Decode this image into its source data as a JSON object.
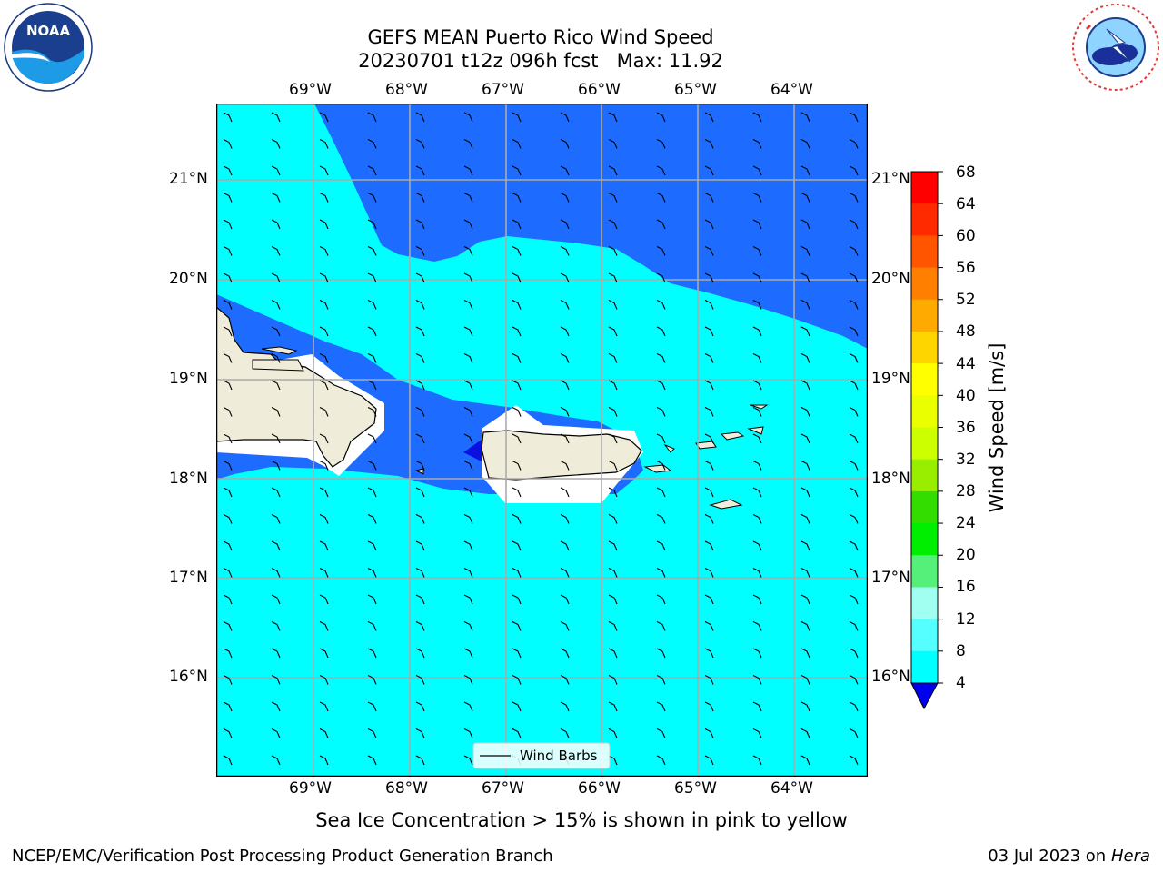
{
  "header": {
    "title_line1": "GEFS MEAN Puerto Rico Wind Speed",
    "title_line2": "20230701 t12z 096h fcst   Max: 11.92"
  },
  "logos": {
    "left": "NOAA",
    "left_ring": "NATIONAL OCEANIC AND ATMOSPHERIC ADMINISTRATION · U.S. DEPARTMENT OF COMMERCE",
    "right_ring": "NATIONAL WEATHER SERVICE"
  },
  "map": {
    "lon_labels": [
      "69°W",
      "68°W",
      "67°W",
      "66°W",
      "65°W",
      "64°W"
    ],
    "lat_labels": [
      "21°N",
      "20°N",
      "19°N",
      "18°N",
      "17°N",
      "16°N"
    ],
    "legend_label": "Wind Barbs",
    "fill_colors": {
      "ocean_light": "#00ffff",
      "ocean_mid": "#1e6cff",
      "ocean_dark": "#0a10e0",
      "land": "#efedda"
    }
  },
  "colorbar": {
    "label": "Wind Speed [m/s]",
    "ticks": [
      "68",
      "64",
      "60",
      "56",
      "52",
      "48",
      "44",
      "40",
      "36",
      "32",
      "28",
      "24",
      "20",
      "16",
      "12",
      "8",
      "4"
    ],
    "colors": [
      "#ff0000",
      "#ff2a00",
      "#ff5500",
      "#ff8000",
      "#ffaa00",
      "#ffd500",
      "#ffff00",
      "#eaff00",
      "#ccff00",
      "#99ee00",
      "#33dd00",
      "#00ee00",
      "#55f07a",
      "#a0fff0",
      "#55ffff",
      "#00ffff",
      "#1e6cff"
    ],
    "under_color": "#0000ee"
  },
  "caption": "Sea Ice Concentration > 15% is shown in pink to yellow",
  "footer": {
    "left": "NCEP/EMC/Verification Post Processing Product Generation Branch",
    "right_date": "03 Jul 2023 on ",
    "right_machine": "Hera"
  }
}
